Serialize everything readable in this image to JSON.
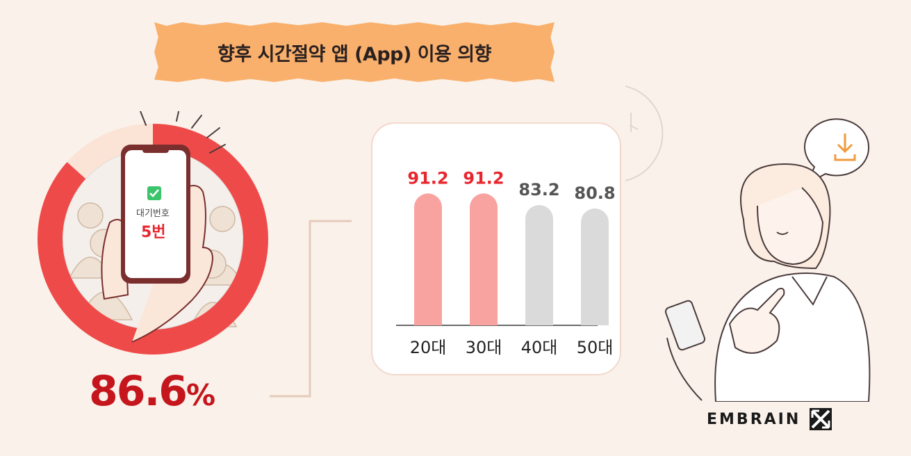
{
  "banner": {
    "title": "향후 시간절약 앱 (App) 이용 의향"
  },
  "overall": {
    "value": "86.6",
    "unit": "%"
  },
  "phone": {
    "label": "대기번호",
    "number": "5번"
  },
  "brand": {
    "name": "EMBRAIN"
  },
  "colors": {
    "accent": "#e8262e",
    "highlight_bar": "#f9a3a1",
    "muted_bar": "#dadada",
    "highlight_label": "#e8262e",
    "muted_label": "#555555"
  },
  "chart_data": {
    "type": "bar",
    "categories": [
      "20대",
      "30대",
      "40대",
      "50대"
    ],
    "values": [
      91.2,
      91.2,
      83.2,
      80.8
    ],
    "value_labels": [
      "91.2",
      "91.2",
      "83.2",
      "80.8"
    ],
    "highlighted": [
      true,
      true,
      false,
      false
    ],
    "title": "",
    "xlabel": "",
    "ylabel": "",
    "ylim": [
      0,
      100
    ],
    "grid": false
  },
  "donut": {
    "value": 86.6,
    "max": 100
  }
}
